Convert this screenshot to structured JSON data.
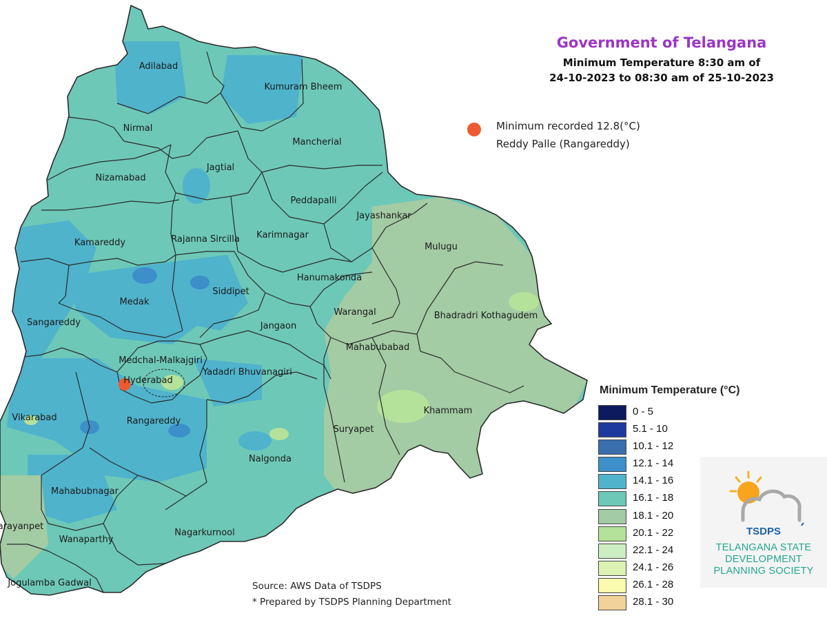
{
  "header": {
    "title": "Government of Telangana",
    "subtitle_line1": "Minimum Temperature 8:30 am of",
    "subtitle_line2": "24-10-2023  to 08:30 am of 25-10-2023"
  },
  "minimum_recorded": {
    "text": "Minimum recorded 12.8(°C)",
    "location": "Reddy Palle (Rangareddy)",
    "value": 12.8,
    "marker_color": "#ee5a30"
  },
  "districts": [
    "Adilabad",
    "Kumuram Bheem",
    "Nirmal",
    "Mancherial",
    "Nizamabad",
    "Jagtial",
    "Peddapalli",
    "Jayashankar",
    "Kamareddy",
    "Rajanna Sircilla",
    "Karimnagar",
    "Mulugu",
    "Hanumakonda",
    "Medak",
    "Siddipet",
    "Warangal",
    "Bhadradri Kothagudem",
    "Sangareddy",
    "Jangaon",
    "Mahabubabad",
    "Medchal-Malkajgiri",
    "Hyderabad",
    "Yadadri Bhuvanagiri",
    "Khammam",
    "Vikarabad",
    "Rangareddy",
    "Suryapet",
    "Nalgonda",
    "Mahabubnagar",
    "arayanpet",
    "Wanaparthy",
    "Nagarkurnool",
    "Jogulamba Gadwal"
  ],
  "legend": {
    "title": "Minimum Temperature (°C)",
    "items": [
      {
        "label": "0 - 5",
        "color": "#0d1b5e"
      },
      {
        "label": "5.1 - 10",
        "color": "#1f3a9e"
      },
      {
        "label": "10.1 - 12",
        "color": "#3a6fae"
      },
      {
        "label": "12.1 - 14",
        "color": "#3d8fca"
      },
      {
        "label": "14.1 - 16",
        "color": "#4fb3cc"
      },
      {
        "label": "16.1 - 18",
        "color": "#6dc8b7"
      },
      {
        "label": "18.1 - 20",
        "color": "#a3cba4"
      },
      {
        "label": "20.1 - 22",
        "color": "#b5e29a"
      },
      {
        "label": "22.1 - 24",
        "color": "#cdeec3"
      },
      {
        "label": "24.1 - 26",
        "color": "#dcf3b3"
      },
      {
        "label": "26.1 - 28",
        "color": "#fbfbb0"
      },
      {
        "label": "28.1 - 30",
        "color": "#f0d29a"
      }
    ]
  },
  "source": {
    "line1": "Source: AWS Data of TSDPS",
    "line2": "* Prepared by TSDPS Planning Department"
  },
  "logo": {
    "brand": "TSDPS",
    "line1": "TELANGANA STATE",
    "line2": "DEVELOPMENT",
    "line3": "PLANNING SOCIETY"
  }
}
